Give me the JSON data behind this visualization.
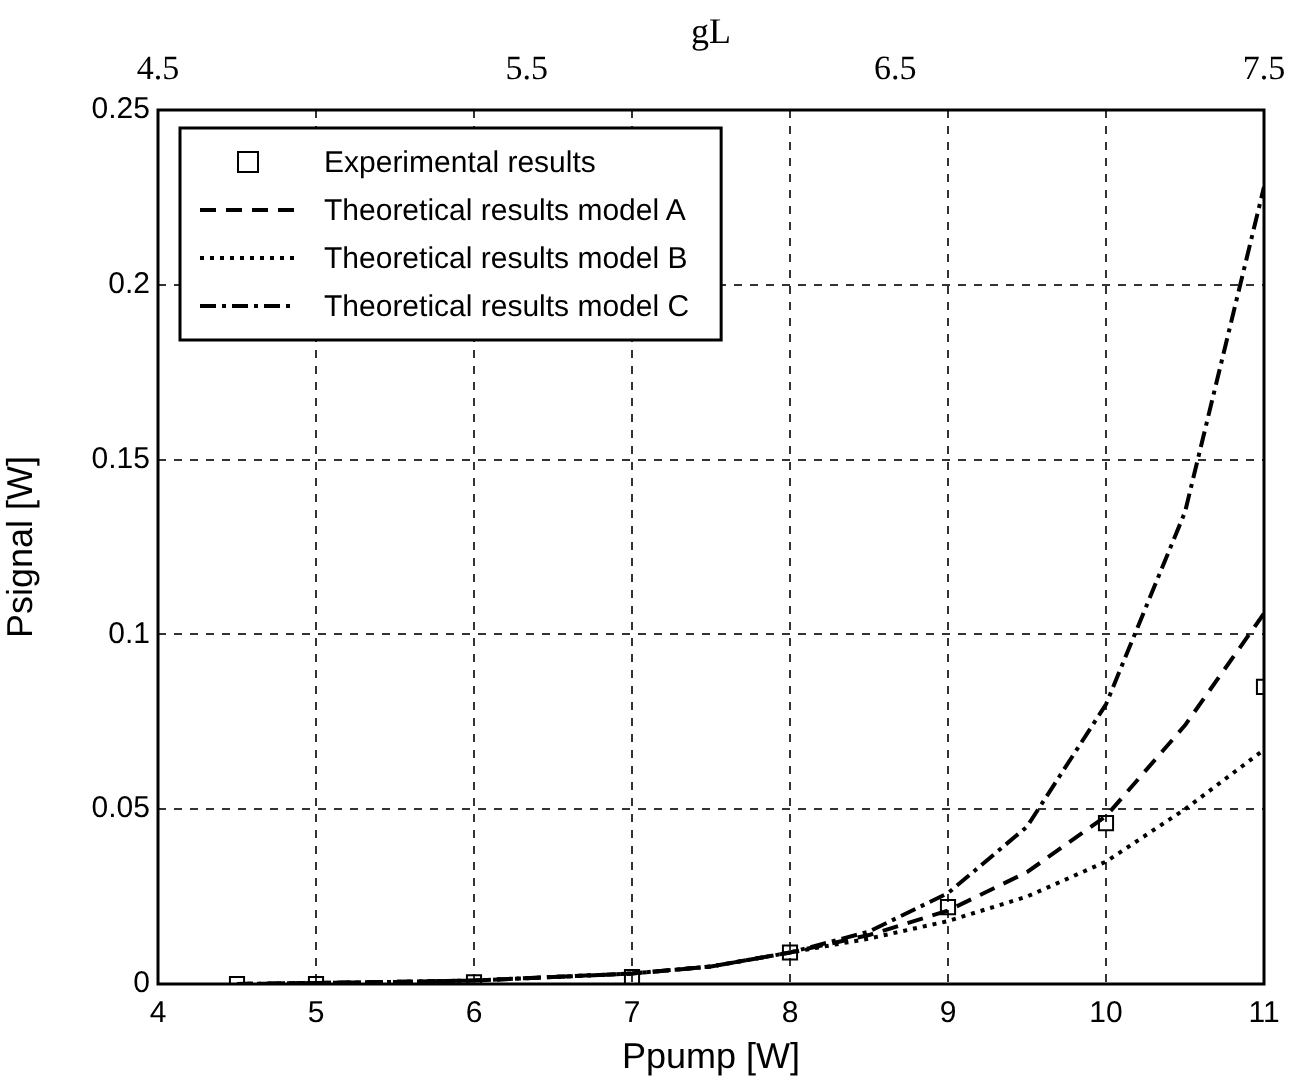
{
  "chart_data": {
    "type": "line",
    "xlabel": "Ppump [W]",
    "ylabel": "Psignal [W]",
    "x2label": "gL",
    "xlim": [
      4,
      11
    ],
    "xticks": [
      4,
      5,
      6,
      7,
      8,
      9,
      10,
      11
    ],
    "ylim": [
      0,
      0.25
    ],
    "yticks": [
      0,
      0.05,
      0.1,
      0.15,
      0.2,
      0.25
    ],
    "x2lim": [
      4.5,
      7.5
    ],
    "x2ticks": [
      4.5,
      5.5,
      6.5,
      7.5
    ],
    "grid": true,
    "legend": "top left",
    "series": [
      {
        "name": "Experimental results",
        "type": "scatter",
        "marker": "square",
        "color": "#000000",
        "x": [
          4.5,
          5,
          6,
          7,
          8,
          9,
          10,
          11
        ],
        "values": [
          0,
          0,
          0.0005,
          0.002,
          0.009,
          0.022,
          0.046,
          0.085
        ]
      },
      {
        "name": "Theoretical results model A",
        "line_style": "dashed",
        "marker": "none",
        "color": "#000000",
        "x": [
          4.5,
          5,
          5.5,
          6,
          6.5,
          7,
          7.5,
          8,
          8.5,
          9,
          9.5,
          10,
          10.5,
          11
        ],
        "values": [
          0,
          0.0003,
          0.0006,
          0.001,
          0.002,
          0.003,
          0.005,
          0.009,
          0.014,
          0.021,
          0.032,
          0.048,
          0.074,
          0.106
        ]
      },
      {
        "name": "Theoretical results model B",
        "line_style": "dotted",
        "marker": "none",
        "color": "#000000",
        "x": [
          4.5,
          5,
          5.5,
          6,
          6.5,
          7,
          7.5,
          8,
          8.5,
          9,
          9.5,
          10,
          10.5,
          11
        ],
        "values": [
          0,
          0.0003,
          0.0006,
          0.001,
          0.002,
          0.003,
          0.005,
          0.009,
          0.013,
          0.018,
          0.025,
          0.035,
          0.05,
          0.067
        ]
      },
      {
        "name": "Theoretical results model C",
        "line_style": "dashdot",
        "marker": "none",
        "color": "#000000",
        "x": [
          4.5,
          5,
          5.5,
          6,
          6.5,
          7,
          7.5,
          8,
          8.5,
          9,
          9.5,
          10,
          10.5,
          11
        ],
        "values": [
          0,
          0.0003,
          0.0006,
          0.001,
          0.002,
          0.003,
          0.005,
          0.009,
          0.015,
          0.026,
          0.045,
          0.08,
          0.135,
          0.228
        ]
      }
    ]
  }
}
